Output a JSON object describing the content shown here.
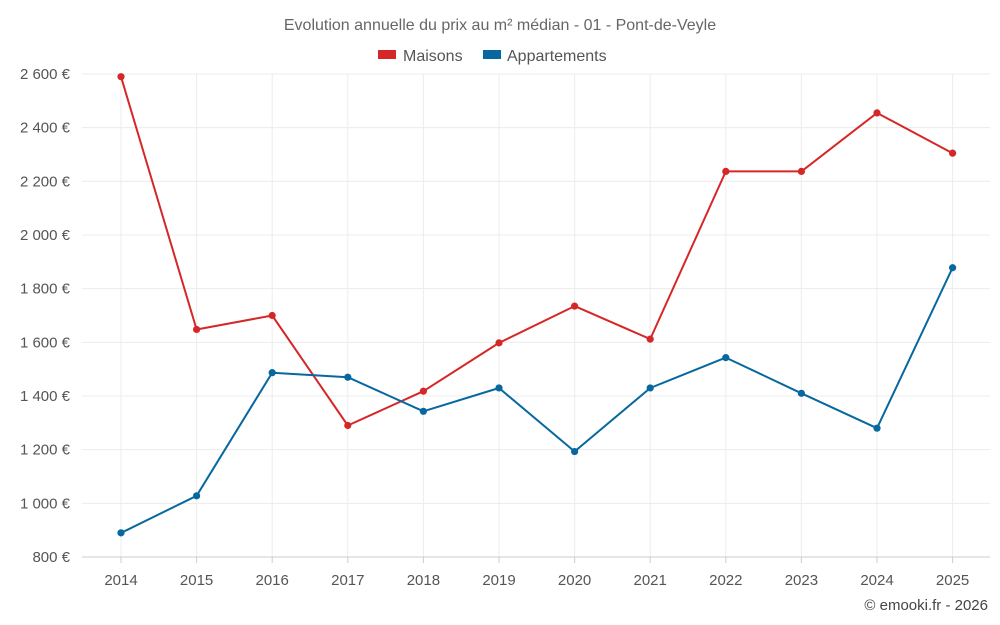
{
  "chart_data": {
    "type": "line",
    "title": "Evolution annuelle du prix au m² médian - 01 - Pont-de-Veyle",
    "categories": [
      "2014",
      "2015",
      "2016",
      "2017",
      "2018",
      "2019",
      "2020",
      "2021",
      "2022",
      "2023",
      "2024",
      "2025"
    ],
    "series": [
      {
        "name": "Maisons",
        "color": "#d62728",
        "values": [
          2590,
          1648,
          1700,
          1290,
          1418,
          1598,
          1735,
          1612,
          2237,
          2237,
          2455,
          2305
        ]
      },
      {
        "name": "Appartements",
        "color": "#07689f",
        "values": [
          890,
          1028,
          1487,
          1470,
          1343,
          1430,
          1193,
          1430,
          1543,
          1410,
          1280,
          1878
        ]
      }
    ],
    "y_ticks": [
      "800 €",
      "1 000 €",
      "1 200 €",
      "1 400 €",
      "1 600 €",
      "1 800 €",
      "2 000 €",
      "2 200 €",
      "2 400 €",
      "2 600 €"
    ],
    "y_tick_values": [
      800,
      1000,
      1200,
      1400,
      1600,
      1800,
      2000,
      2200,
      2400,
      2600
    ],
    "ylim": [
      800,
      2600
    ],
    "xlabel": "",
    "ylabel": "",
    "grid": true,
    "legend_position": "top-center"
  },
  "credit": "© emooki.fr - 2026"
}
